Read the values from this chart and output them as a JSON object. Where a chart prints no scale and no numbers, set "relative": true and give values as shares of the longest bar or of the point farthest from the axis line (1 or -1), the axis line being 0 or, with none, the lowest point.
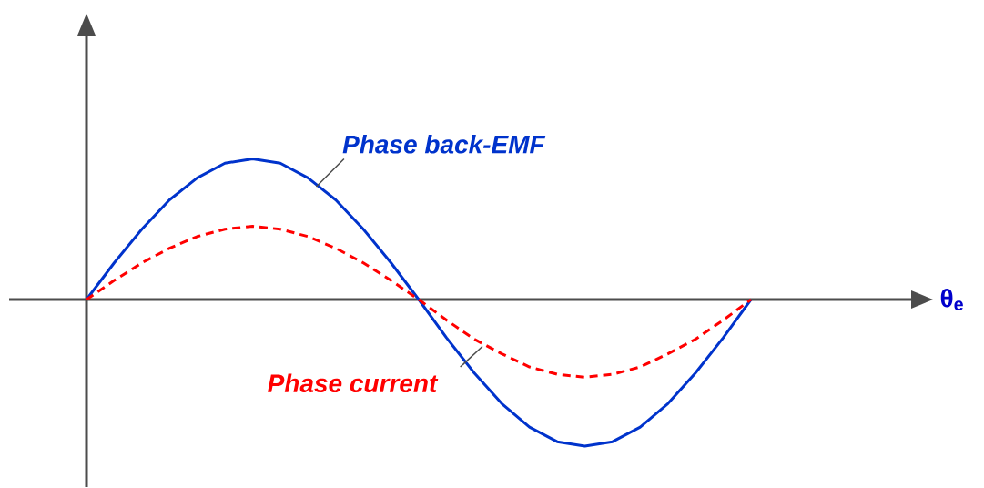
{
  "chart_data": {
    "type": "line",
    "relative": true,
    "annotations": [
      "θ$_{e}$"
    ],
    "categories": [
      null,
      null,
      null,
      null,
      null,
      null,
      null,
      null,
      null,
      null,
      null,
      null,
      null,
      null,
      null,
      null,
      null,
      null,
      null,
      null,
      null,
      null,
      null,
      null,
      null
    ],
    "series": [
      {
        "name": "Phase back-EMF",
        "color": "#0033cc",
        "line_style": "solid",
        "values": [
          0,
          0.25,
          0.48,
          0.68,
          0.83,
          0.93,
          0.96,
          0.93,
          0.83,
          0.68,
          0.48,
          0.25,
          0,
          -0.26,
          -0.5,
          -0.71,
          -0.87,
          -0.97,
          -1,
          -0.97,
          -0.87,
          -0.71,
          -0.5,
          -0.26,
          0
        ]
      },
      {
        "name": "Phase current",
        "color": "#ff0000",
        "line_style": "dashed",
        "values": [
          0,
          0.13,
          0.25,
          0.35,
          0.43,
          0.48,
          0.5,
          0.48,
          0.43,
          0.35,
          0.25,
          0.13,
          0,
          -0.14,
          -0.27,
          -0.37,
          -0.46,
          -0.51,
          -0.53,
          -0.51,
          -0.46,
          -0.37,
          -0.27,
          -0.14,
          0
        ]
      }
    ]
  }
}
